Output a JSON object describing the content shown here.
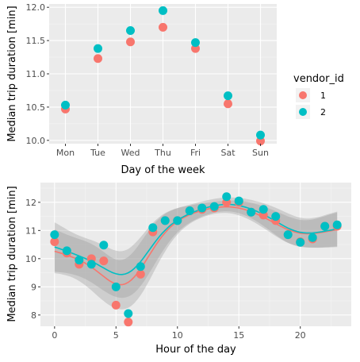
{
  "chart_data": [
    {
      "type": "scatter",
      "xlabel": "Day of the week",
      "ylabel": "Median trip duration [min]",
      "categories": [
        "Mon",
        "Tue",
        "Wed",
        "Thu",
        "Fri",
        "Sat",
        "Sun"
      ],
      "ylim": [
        9.95,
        12.05
      ],
      "yticks": [
        "10.0",
        "10.5",
        "11.0",
        "11.5",
        "12.0"
      ],
      "grid": true,
      "series": [
        {
          "name": "1",
          "color": "#F8766D",
          "values": [
            10.47,
            11.23,
            11.48,
            11.7,
            11.38,
            10.55,
            9.99
          ]
        },
        {
          "name": "2",
          "color": "#00BFC4",
          "values": [
            10.53,
            11.38,
            11.65,
            11.95,
            11.47,
            10.67,
            10.08
          ]
        }
      ],
      "legend": {
        "title": "vendor_id",
        "position": "right",
        "labels": [
          "1",
          "2"
        ]
      }
    },
    {
      "type": "scatter",
      "xlabel": "Hour of the day",
      "ylabel": "Median trip duration [min]",
      "xlim": [
        -1.15,
        24.15
      ],
      "ylim": [
        7.6,
        12.7
      ],
      "xticks": [
        0,
        5,
        10,
        15,
        20
      ],
      "yticks": [
        8,
        9,
        10,
        11,
        12
      ],
      "grid": true,
      "smoothing": "loess with confidence band",
      "series": [
        {
          "name": "1",
          "color": "#F8766D",
          "x": [
            0,
            1,
            2,
            3,
            4,
            5,
            6,
            7,
            8,
            9,
            10,
            11,
            12,
            13,
            14,
            15,
            16,
            17,
            18,
            19,
            20,
            21,
            22,
            23
          ],
          "values": [
            10.6,
            10.2,
            9.8,
            10.0,
            9.92,
            8.35,
            7.75,
            9.45,
            10.95,
            11.35,
            11.35,
            11.7,
            11.75,
            11.8,
            12.0,
            12.0,
            11.65,
            11.55,
            11.35,
            10.85,
            10.6,
            10.7,
            11.15,
            11.15
          ]
        },
        {
          "name": "2",
          "color": "#00BFC4",
          "x": [
            0,
            1,
            2,
            3,
            4,
            5,
            6,
            7,
            8,
            9,
            10,
            11,
            12,
            13,
            14,
            15,
            16,
            17,
            18,
            19,
            20,
            21,
            22,
            23
          ],
          "values": [
            10.85,
            10.28,
            9.95,
            9.8,
            10.48,
            9.0,
            8.05,
            9.72,
            11.1,
            11.35,
            11.35,
            11.7,
            11.8,
            11.85,
            12.2,
            12.05,
            11.65,
            11.75,
            11.5,
            10.85,
            10.58,
            10.75,
            11.15,
            11.2
          ]
        }
      ]
    }
  ]
}
